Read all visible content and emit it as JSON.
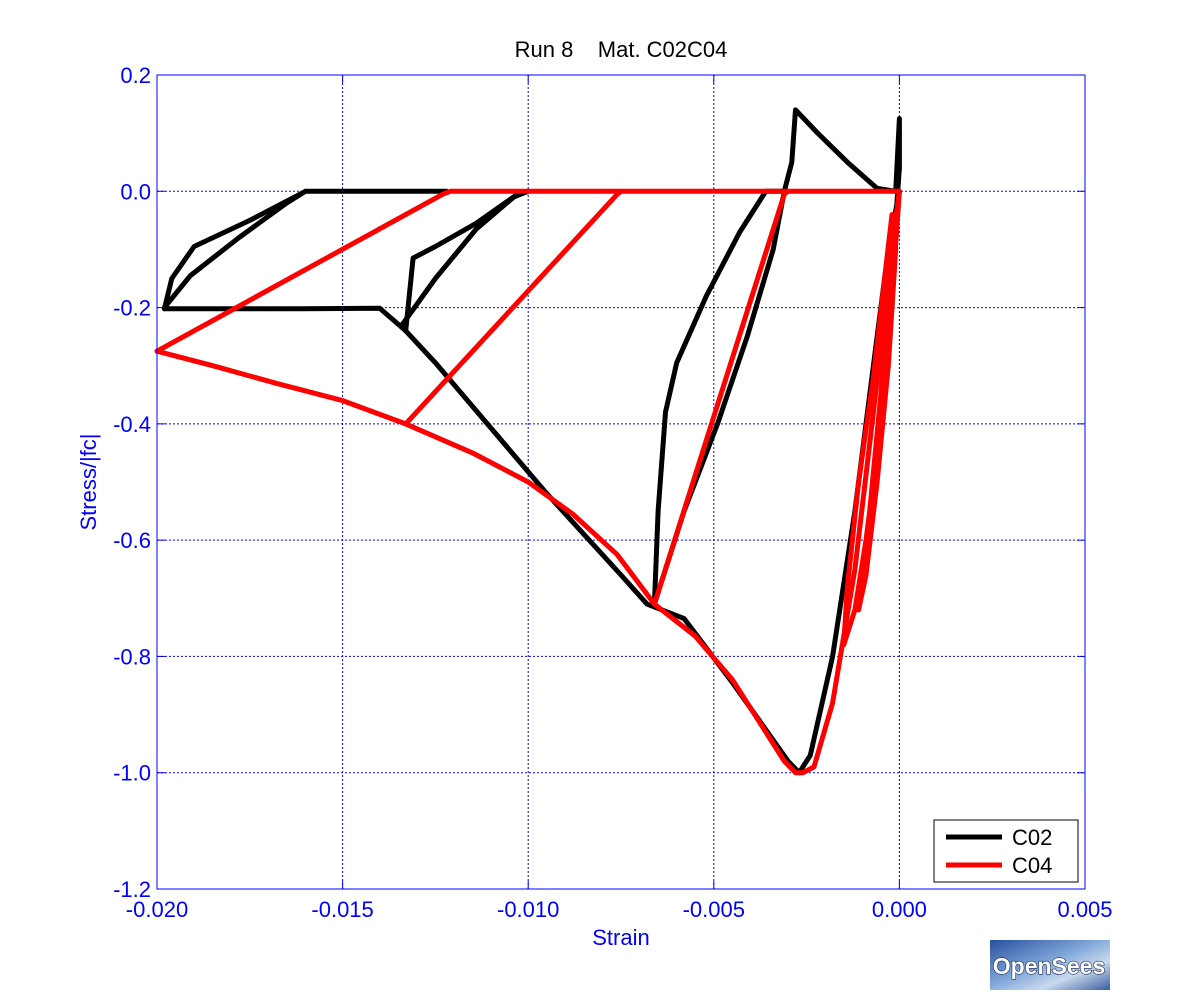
{
  "chart_data": {
    "type": "line",
    "title": "Run 8    Mat. C02C04",
    "xlabel": "Strain",
    "ylabel": "Stress/|fc|",
    "xlim": [
      -0.02,
      0.005
    ],
    "ylim": [
      -1.2,
      0.2
    ],
    "xticks": [
      -0.02,
      -0.015,
      -0.01,
      -0.005,
      0.0,
      0.005
    ],
    "xtick_labels": [
      "-0.020",
      "-0.015",
      "-0.010",
      "-0.005",
      "0.000",
      "0.005"
    ],
    "yticks": [
      0.2,
      0.0,
      -0.2,
      -0.4,
      -0.6,
      -0.8,
      -1.0,
      -1.2
    ],
    "ytick_labels": [
      "0.2",
      "0.0",
      "-0.2",
      "-0.4",
      "-0.6",
      "-0.8",
      "-1.0",
      "-1.2"
    ],
    "grid": true,
    "legend_position": "bottom-right",
    "colors": {
      "axis": "#0000ff",
      "grid": "#0000ff"
    },
    "series": [
      {
        "name": "C02",
        "color": "#000000",
        "segments": [
          {
            "x": [
              0.0,
              -0.0003,
              -0.0007,
              -0.0012,
              -0.0018,
              -0.0024,
              -0.0027,
              -0.003,
              -0.0035,
              -0.0045,
              -0.0058,
              -0.0068,
              -0.0075,
              -0.0085,
              -0.0095,
              -0.0105,
              -0.0115,
              -0.0125,
              -0.0133
            ],
            "y": [
              0.0,
              -0.1,
              -0.3,
              -0.55,
              -0.8,
              -0.97,
              -1.0,
              -0.98,
              -0.935,
              -0.845,
              -0.735,
              -0.71,
              -0.66,
              -0.59,
              -0.52,
              -0.445,
              -0.37,
              -0.295,
              -0.24
            ]
          },
          {
            "x": [
              -0.0133,
              -0.014,
              -0.0161,
              -0.0198
            ],
            "y": [
              -0.24,
              -0.201,
              -0.202,
              -0.202
            ]
          },
          {
            "x": [
              -0.0133,
              -0.0131,
              -0.0125,
              -0.0114,
              -0.0104,
              -0.01
            ],
            "y": [
              -0.24,
              -0.115,
              -0.095,
              -0.055,
              -0.01,
              0.0
            ]
          },
          {
            "x": [
              -0.01,
              -0.0103,
              -0.0114,
              -0.0125,
              -0.0134
            ],
            "y": [
              0.0,
              -0.005,
              -0.065,
              -0.15,
              -0.23
            ]
          },
          {
            "x": [
              -0.0198,
              -0.0196,
              -0.019,
              -0.0175,
              -0.016,
              -0.0122
            ],
            "y": [
              -0.202,
              -0.15,
              -0.095,
              -0.05,
              0.0,
              0.0
            ]
          },
          {
            "x": [
              -0.016,
              -0.0165,
              -0.0178,
              -0.0191,
              -0.0198
            ],
            "y": [
              0.0,
              -0.02,
              -0.08,
              -0.145,
              -0.2
            ]
          },
          {
            "x": [
              -0.0066,
              -0.0065,
              -0.0063,
              -0.006,
              -0.0052,
              -0.0043,
              -0.0036,
              -0.0031
            ],
            "y": [
              -0.71,
              -0.55,
              -0.38,
              -0.295,
              -0.18,
              -0.07,
              0.0,
              0.0
            ]
          },
          {
            "x": [
              -0.0031,
              -0.0029,
              -0.0028,
              -0.0022,
              -0.0014,
              -0.0006,
              -0.0001
            ],
            "y": [
              0.0,
              0.05,
              0.14,
              0.1,
              0.05,
              0.005,
              0.0
            ]
          },
          {
            "x": [
              -0.0066,
              -0.0058,
              -0.0049,
              -0.0041,
              -0.0034,
              -0.0031
            ],
            "y": [
              -0.71,
              -0.55,
              -0.4,
              -0.25,
              -0.1,
              0.0
            ]
          },
          {
            "x": [
              -0.0002,
              -0.0001,
              0.0,
              0.0,
              -0.0001
            ],
            "y": [
              -0.08,
              -0.05,
              0.04,
              0.125,
              0.0
            ]
          }
        ]
      },
      {
        "name": "C04",
        "color": "#ff0000",
        "segments": [
          {
            "x": [
              0.0,
              -0.0003,
              -0.0007,
              -0.0012,
              -0.0018,
              -0.0023,
              -0.0026,
              -0.0028,
              -0.0031,
              -0.0037,
              -0.0045,
              -0.0055,
              -0.0066,
              -0.0076,
              -0.0088,
              -0.01,
              -0.0115,
              -0.0133,
              -0.015,
              -0.0168,
              -0.0185,
              -0.02
            ],
            "y": [
              0.0,
              -0.15,
              -0.38,
              -0.65,
              -0.88,
              -0.99,
              -1.0,
              -1.0,
              -0.98,
              -0.92,
              -0.84,
              -0.765,
              -0.71,
              -0.625,
              -0.555,
              -0.5,
              -0.45,
              -0.4,
              -0.36,
              -0.33,
              -0.3,
              -0.275
            ]
          },
          {
            "x": [
              -0.02,
              -0.0123,
              -0.0121,
              0.0
            ],
            "y": [
              -0.275,
              -0.005,
              0.0,
              0.0
            ]
          },
          {
            "x": [
              -0.0133,
              -0.0076,
              -0.0075
            ],
            "y": [
              -0.4,
              -0.005,
              0.0
            ]
          },
          {
            "x": [
              -0.0066,
              -0.0031,
              -0.003
            ],
            "y": [
              -0.71,
              -0.005,
              0.0
            ]
          },
          {
            "x": [
              0.0,
              -0.0002,
              -0.0005,
              -0.0009,
              -0.0012,
              -0.0015,
              -0.0014,
              -0.0011,
              -0.0007,
              -0.0004,
              -0.0002,
              -0.0001,
              -0.0003,
              -0.0006,
              -0.0009,
              -0.0011,
              -0.0008,
              -0.0005,
              -0.0003,
              -0.0001,
              0.0
            ],
            "y": [
              0.0,
              -0.18,
              -0.4,
              -0.6,
              -0.72,
              -0.78,
              -0.68,
              -0.5,
              -0.32,
              -0.15,
              -0.04,
              -0.1,
              -0.3,
              -0.5,
              -0.66,
              -0.72,
              -0.55,
              -0.35,
              -0.18,
              -0.05,
              0.0
            ]
          }
        ]
      }
    ],
    "legend": [
      {
        "label": "C02",
        "color": "#000000"
      },
      {
        "label": "C04",
        "color": "#ff0000"
      }
    ]
  },
  "logo": {
    "text": "OpenSees"
  }
}
